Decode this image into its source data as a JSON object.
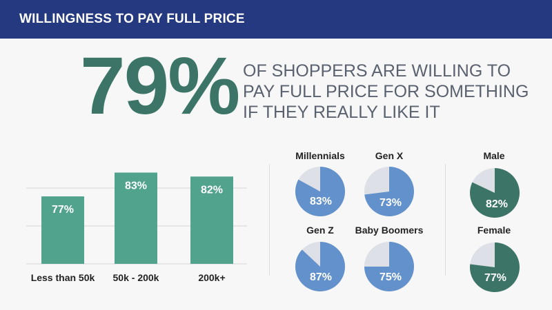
{
  "header": {
    "title": "WILLINGNESS TO PAY FULL PRICE"
  },
  "hero": {
    "value": "79%",
    "lines": [
      "OF SHOPPERS ARE WILLING TO",
      "PAY FULL PRICE FOR SOMETHING",
      "IF THEY REALLY LIKE IT"
    ]
  },
  "colors": {
    "header": "#24397f",
    "hero": "#3c7567",
    "bar": "#52a38e",
    "generation": "#6391cc",
    "gender": "#3c7567",
    "remainder": "#dde0e6"
  },
  "chart_data": [
    {
      "type": "bar",
      "title": "",
      "categories": [
        "Less than 50k",
        "50k - 200k",
        "200k+"
      ],
      "values": [
        77,
        83,
        82
      ],
      "labels": [
        "77%",
        "83%",
        "82%"
      ],
      "ylim": [
        60,
        85
      ],
      "grid": true,
      "xlabel": "",
      "ylabel": ""
    },
    {
      "type": "pie",
      "group": "generation",
      "items": [
        {
          "name": "Millennials",
          "value": 83,
          "label": "83%"
        },
        {
          "name": "Gen X",
          "value": 73,
          "label": "73%"
        },
        {
          "name": "Gen Z",
          "value": 87,
          "label": "87%"
        },
        {
          "name": "Baby Boomers",
          "value": 75,
          "label": "75%"
        }
      ]
    },
    {
      "type": "pie",
      "group": "gender",
      "items": [
        {
          "name": "Male",
          "value": 82,
          "label": "82%"
        },
        {
          "name": "Female",
          "value": 77,
          "label": "77%"
        }
      ]
    }
  ]
}
